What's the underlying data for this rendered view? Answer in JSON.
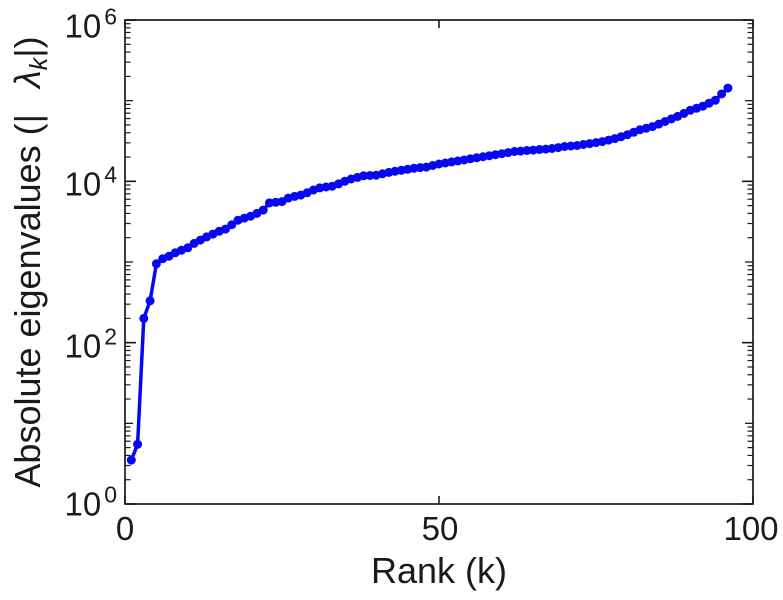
{
  "figure": {
    "background": "#ffffff",
    "axis_color": "#1a1a1a",
    "text_color": "#1a1a1a"
  },
  "chart_data": {
    "type": "line",
    "title": "",
    "xlabel": "Rank (k)",
    "ylabel": {
      "prefix": "Absolute eigenvalues (|",
      "symbol": "λ",
      "subscript": "k",
      "suffix": "|)"
    },
    "grid": false,
    "legend": null,
    "x_axis": {
      "min": 0,
      "max": 100,
      "ticks": [
        0,
        50,
        100
      ],
      "tick_labels": [
        "0",
        "50",
        "100"
      ]
    },
    "y_axis": {
      "scale": "log",
      "min_exp": 0,
      "max_exp": 6,
      "tick_exponents": [
        0,
        2,
        4,
        6
      ],
      "tick_labels": [
        {
          "base": "10",
          "exp": "0"
        },
        {
          "base": "10",
          "exp": "2"
        },
        {
          "base": "10",
          "exp": "4"
        },
        {
          "base": "10",
          "exp": "6"
        }
      ],
      "minor_ticks": true
    },
    "series": [
      {
        "name": "absolute-eigenvalues",
        "color": "#0808f0",
        "marker": "filled-circle",
        "marker_radius": 4.5,
        "line_width": 3.5,
        "x": [
          1,
          2,
          3,
          4,
          5,
          6,
          7,
          8,
          9,
          10,
          11,
          12,
          13,
          14,
          15,
          16,
          17,
          18,
          19,
          20,
          21,
          22,
          23,
          24,
          25,
          26,
          27,
          28,
          29,
          30,
          31,
          32,
          33,
          34,
          35,
          36,
          37,
          38,
          39,
          40,
          41,
          42,
          43,
          44,
          45,
          46,
          47,
          48,
          49,
          50,
          51,
          52,
          53,
          54,
          55,
          56,
          57,
          58,
          59,
          60,
          61,
          62,
          63,
          64,
          65,
          66,
          67,
          68,
          69,
          70,
          71,
          72,
          73,
          74,
          75,
          76,
          77,
          78,
          79,
          80,
          81,
          82,
          83,
          84,
          85,
          86,
          87,
          88,
          89,
          90,
          91,
          92,
          93,
          94,
          95,
          96
        ],
        "y": [
          3.5,
          5.5,
          200,
          330,
          950,
          1100,
          1180,
          1300,
          1400,
          1500,
          1700,
          1870,
          2050,
          2220,
          2400,
          2560,
          2900,
          3300,
          3500,
          3700,
          4000,
          4400,
          5400,
          5500,
          5600,
          6200,
          6500,
          6750,
          7200,
          7800,
          8300,
          8500,
          8700,
          9300,
          10000,
          10700,
          11200,
          11700,
          11800,
          11900,
          12400,
          12900,
          13300,
          13700,
          14100,
          14500,
          14800,
          15000,
          15700,
          16400,
          16900,
          17400,
          17900,
          18400,
          19000,
          19600,
          20200,
          20800,
          21400,
          22000,
          22700,
          23400,
          23700,
          24100,
          24400,
          24800,
          25100,
          25500,
          26200,
          27000,
          27400,
          27800,
          28600,
          29400,
          30200,
          31100,
          32400,
          33900,
          35800,
          37800,
          40600,
          43600,
          45600,
          47700,
          51300,
          55200,
          59400,
          63800,
          69600,
          75900,
          80500,
          85400,
          93000,
          101000,
          121000,
          143000
        ]
      }
    ]
  }
}
